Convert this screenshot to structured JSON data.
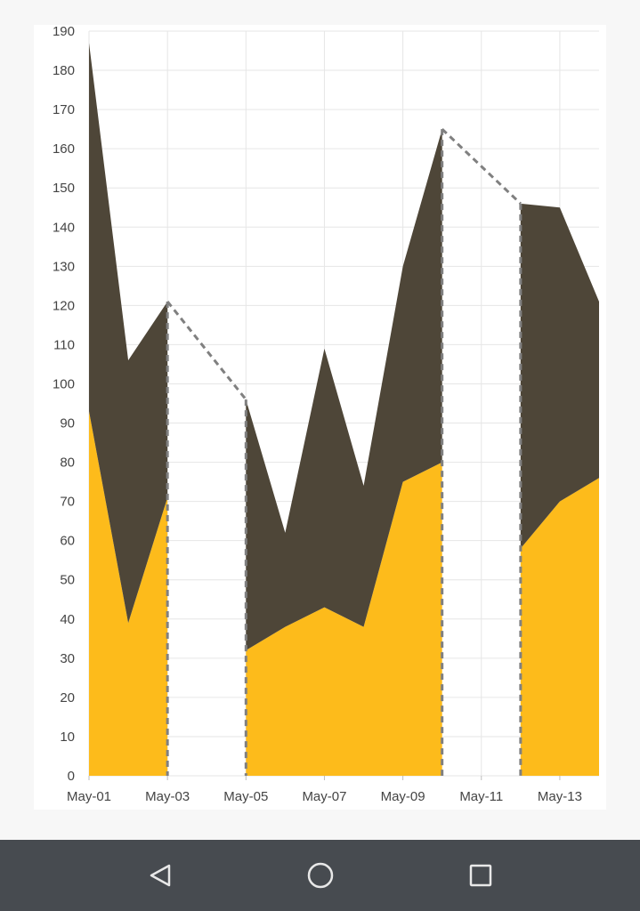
{
  "chart_data": {
    "type": "area",
    "stacked": true,
    "x": [
      "May-01",
      "May-02",
      "May-03",
      "May-04",
      "May-05",
      "May-06",
      "May-07",
      "May-08",
      "May-09",
      "May-10",
      "May-11",
      "May-12",
      "May-13",
      "May-14"
    ],
    "x_tick_labels": [
      "May-01",
      "May-03",
      "May-05",
      "May-07",
      "May-09",
      "May-11",
      "May-13"
    ],
    "ylim": [
      0,
      190
    ],
    "y_ticks": [
      0,
      10,
      20,
      30,
      40,
      50,
      60,
      70,
      80,
      90,
      100,
      110,
      120,
      130,
      140,
      150,
      160,
      170,
      180,
      190
    ],
    "grid": true,
    "legend": "none",
    "series": [
      {
        "color": "#fdbb1b",
        "values": [
          93,
          39,
          71,
          null,
          32,
          38,
          43,
          38,
          75,
          80,
          null,
          58,
          70,
          76
        ]
      },
      {
        "color": "#4e4638",
        "values": [
          94,
          67,
          50,
          null,
          64,
          24,
          66,
          36,
          55,
          85,
          null,
          88,
          75,
          45
        ]
      }
    ],
    "gap_style": {
      "color": "#808080",
      "dashed": true
    }
  },
  "nav": {
    "back_icon": "back-triangle-icon",
    "home_icon": "home-circle-icon",
    "recents_icon": "recents-square-icon"
  }
}
